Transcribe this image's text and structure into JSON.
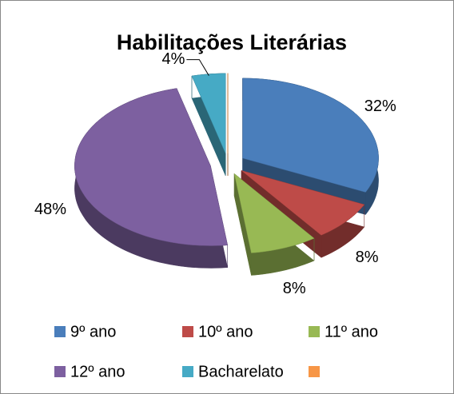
{
  "chart_data": {
    "type": "pie",
    "title": "Habilitações Literárias",
    "categories": [
      "9º ano",
      "10º ano",
      "11º ano",
      "12º ano",
      "Bacharelato",
      null
    ],
    "values": [
      32,
      8,
      8,
      48,
      4,
      0
    ],
    "value_labels": [
      "32%",
      "8%",
      "8%",
      "48%",
      "4%",
      null
    ],
    "colors": [
      "#4a7ebb",
      "#be4b48",
      "#98b954",
      "#7d60a0",
      "#46aac5",
      "#f79646"
    ],
    "legend": "bottom"
  }
}
